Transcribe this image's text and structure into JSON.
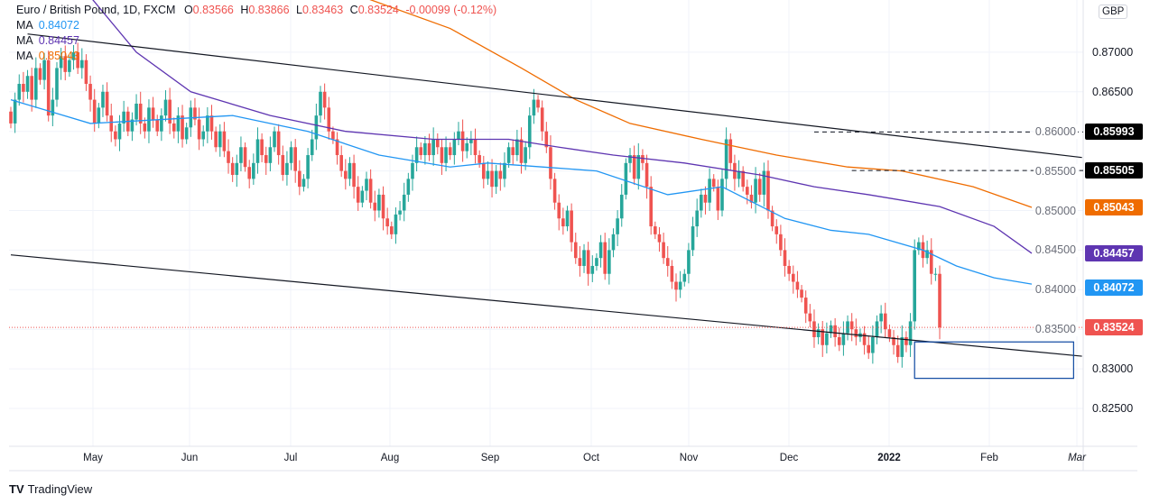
{
  "legend": {
    "symbol": "Euro / British Pound, 1D, FXCM",
    "o_label": "O",
    "o": "0.83566",
    "h_label": "H",
    "h": "0.83866",
    "l_label": "L",
    "l": "0.83463",
    "c_label": "C",
    "c": "0.83524",
    "change": "-0.00099 (-0.12%)",
    "ma_label": "MA",
    "ma1": "0.84072",
    "ma2": "0.84457",
    "ma3": "0.85043"
  },
  "currency": "GBP",
  "brand": "TradingView",
  "colors": {
    "up": "#26a69a",
    "down": "#ef5350",
    "ma1": "#2196f3",
    "ma2": "#5e35b1",
    "ma3": "#ef6c00",
    "rect": "#0d47a1"
  },
  "chart_data": {
    "type": "candlestick",
    "ylim": [
      0.825,
      0.876
    ],
    "yticks": [
      "0.87000",
      "0.86500",
      "0.86000",
      "0.85500",
      "0.85000",
      "0.84500",
      "0.84000",
      "0.83500",
      "0.83000",
      "0.82500"
    ],
    "xticks": [
      "May",
      "Jun",
      "Jul",
      "Aug",
      "Sep",
      "Oct",
      "Nov",
      "Dec",
      "2022",
      "Feb",
      "Mar"
    ],
    "grid": true,
    "closes": [
      0.861,
      0.864,
      0.866,
      0.865,
      0.867,
      0.864,
      0.868,
      0.8665,
      0.869,
      0.862,
      0.864,
      0.868,
      0.8695,
      0.8675,
      0.869,
      0.87,
      0.868,
      0.869,
      0.866,
      0.864,
      0.861,
      0.863,
      0.865,
      0.862,
      0.86,
      0.859,
      0.861,
      0.8625,
      0.86,
      0.8615,
      0.8635,
      0.861,
      0.86,
      0.863,
      0.8615,
      0.86,
      0.862,
      0.864,
      0.861,
      0.86,
      0.862,
      0.859,
      0.8605,
      0.863,
      0.8615,
      0.859,
      0.86,
      0.862,
      0.86,
      0.858,
      0.86,
      0.8575,
      0.856,
      0.8545,
      0.856,
      0.858,
      0.8555,
      0.854,
      0.856,
      0.859,
      0.857,
      0.856,
      0.858,
      0.86,
      0.857,
      0.8545,
      0.856,
      0.858,
      0.855,
      0.853,
      0.854,
      0.857,
      0.859,
      0.862,
      0.865,
      0.863,
      0.86,
      0.859,
      0.857,
      0.855,
      0.854,
      0.856,
      0.853,
      0.851,
      0.8525,
      0.854,
      0.851,
      0.85,
      0.852,
      0.849,
      0.848,
      0.847,
      0.8495,
      0.85,
      0.852,
      0.854,
      0.856,
      0.858,
      0.857,
      0.8585,
      0.857,
      0.859,
      0.858,
      0.856,
      0.858,
      0.857,
      0.859,
      0.86,
      0.8575,
      0.8585,
      0.859,
      0.857,
      0.856,
      0.854,
      0.855,
      0.853,
      0.855,
      0.854,
      0.856,
      0.858,
      0.857,
      0.859,
      0.856,
      0.858,
      0.862,
      0.864,
      0.863,
      0.86,
      0.858,
      0.854,
      0.851,
      0.849,
      0.848,
      0.85,
      0.846,
      0.844,
      0.843,
      0.845,
      0.842,
      0.843,
      0.844,
      0.846,
      0.842,
      0.845,
      0.847,
      0.849,
      0.852,
      0.856,
      0.857,
      0.854,
      0.857,
      0.856,
      0.853,
      0.848,
      0.847,
      0.846,
      0.844,
      0.843,
      0.841,
      0.84,
      0.841,
      0.842,
      0.845,
      0.848,
      0.85,
      0.852,
      0.851,
      0.854,
      0.853,
      0.85,
      0.854,
      0.859,
      0.856,
      0.854,
      0.855,
      0.853,
      0.852,
      0.851,
      0.854,
      0.852,
      0.855,
      0.85,
      0.848,
      0.847,
      0.845,
      0.843,
      0.842,
      0.841,
      0.84,
      0.839,
      0.837,
      0.836,
      0.834,
      0.835,
      0.833,
      0.8345,
      0.8355,
      0.834,
      0.833,
      0.8345,
      0.836,
      0.835,
      0.834,
      0.8345,
      0.833,
      0.832,
      0.834,
      0.836,
      0.837,
      0.835,
      0.834,
      0.833,
      0.8315,
      0.834,
      0.833,
      0.836,
      0.845,
      0.846,
      0.844,
      0.845,
      0.842,
      0.842,
      0.83524
    ],
    "ma_lines": [
      {
        "name": "MA",
        "value": "0.84072",
        "color": "#2196f3",
        "points": [
          [
            0,
            0.864
          ],
          [
            19,
            0.861
          ],
          [
            53,
            0.862
          ],
          [
            71,
            0.86
          ],
          [
            88,
            0.857
          ],
          [
            105,
            0.8555
          ],
          [
            114,
            0.856
          ],
          [
            127,
            0.8555
          ],
          [
            140,
            0.855
          ],
          [
            157,
            0.852
          ],
          [
            170,
            0.853
          ],
          [
            185,
            0.849
          ],
          [
            196,
            0.8475
          ],
          [
            205,
            0.847
          ],
          [
            218,
            0.845
          ],
          [
            226,
            0.843
          ],
          [
            235,
            0.8415
          ],
          [
            244,
            0.8407
          ]
        ]
      },
      {
        "name": "MA",
        "value": "0.84457",
        "color": "#5e35b1",
        "points": [
          [
            19,
            0.877
          ],
          [
            30,
            0.87
          ],
          [
            43,
            0.865
          ],
          [
            62,
            0.862
          ],
          [
            80,
            0.86
          ],
          [
            101,
            0.859
          ],
          [
            119,
            0.859
          ],
          [
            131,
            0.858
          ],
          [
            144,
            0.857
          ],
          [
            161,
            0.856
          ],
          [
            179,
            0.8545
          ],
          [
            192,
            0.853
          ],
          [
            205,
            0.852
          ],
          [
            222,
            0.8505
          ],
          [
            235,
            0.848
          ],
          [
            244,
            0.8446
          ]
        ]
      },
      {
        "name": "MA",
        "value": "0.85043",
        "color": "#ef6c00",
        "points": [
          [
            84,
            0.877
          ],
          [
            105,
            0.873
          ],
          [
            122,
            0.868
          ],
          [
            135,
            0.864
          ],
          [
            148,
            0.861
          ],
          [
            165,
            0.859
          ],
          [
            183,
            0.857
          ],
          [
            200,
            0.8555
          ],
          [
            213,
            0.855
          ],
          [
            230,
            0.853
          ],
          [
            244,
            0.8504
          ]
        ]
      }
    ],
    "trendlines": [
      [
        [
          4,
          0.8723
        ],
        [
          256,
          0.8567
        ]
      ],
      [
        [
          0,
          0.8444
        ],
        [
          256,
          0.8316
        ]
      ]
    ],
    "levels": [
      {
        "value": "0.85993",
        "from": 192
      },
      {
        "value": "0.85505",
        "from": 201
      }
    ],
    "last_price": "0.83524",
    "box": {
      "from": 216,
      "to": 254,
      "top": 0.8334,
      "bottom": 0.8288
    }
  }
}
